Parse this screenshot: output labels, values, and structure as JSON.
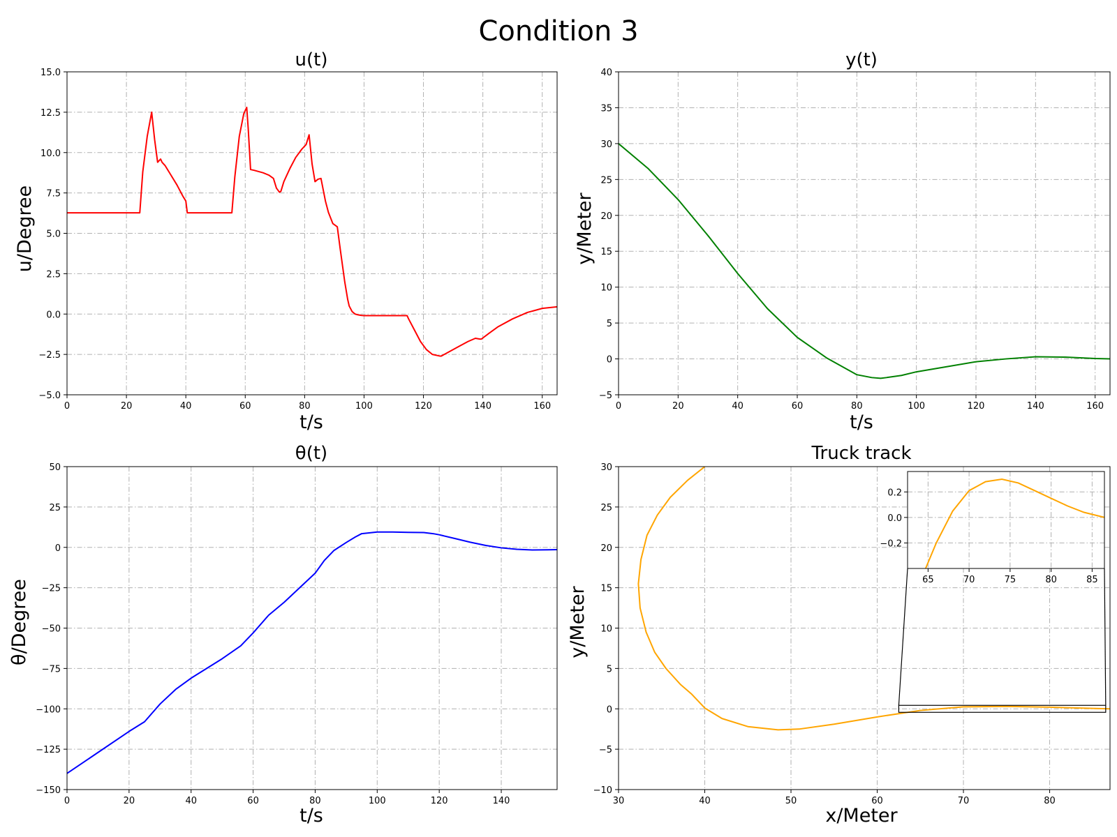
{
  "figure": {
    "suptitle": "Condition 3"
  },
  "chart_data": [
    {
      "id": "u",
      "type": "line",
      "title": "u(t)",
      "xlabel": "t/s",
      "ylabel": "u/Degree",
      "xlim": [
        0,
        165
      ],
      "ylim": [
        -5,
        15
      ],
      "xticks": [
        0,
        20,
        40,
        60,
        80,
        100,
        120,
        140,
        160
      ],
      "yticks": [
        -5,
        -2.5,
        0,
        2.5,
        5,
        7.5,
        10,
        12.5,
        15
      ],
      "ytick_labels": [
        "−5.0",
        "−2.5",
        "0.0",
        "2.5",
        "5.0",
        "7.5",
        "10.0",
        "12.5",
        "15.0"
      ],
      "grid": true,
      "series": [
        {
          "color": "#ff0000",
          "x": [
            0,
            24.5,
            25.5,
            27,
            28.5,
            29.5,
            30.5,
            31.5,
            32,
            33,
            35,
            37,
            39,
            40,
            40.5,
            44,
            50,
            55.5,
            56.5,
            58,
            59.5,
            60.5,
            61,
            61.8,
            63,
            66,
            68,
            69.5,
            70.5,
            71.5,
            72,
            73,
            75,
            77,
            79,
            80.5,
            81.5,
            82.5,
            83.5,
            84.5,
            85.5,
            87,
            88,
            89.5,
            91,
            92,
            93.5,
            94.5,
            95,
            96,
            97,
            98,
            99,
            100,
            101,
            103,
            106,
            110,
            114.5,
            115,
            117,
            119,
            121,
            123,
            125.5,
            126,
            129,
            132,
            135,
            137.5,
            139,
            139.5,
            142,
            145,
            150,
            155,
            160,
            165
          ],
          "y": [
            6.27,
            6.27,
            8.8,
            11,
            12.5,
            10.8,
            9.4,
            9.6,
            9.4,
            9.2,
            8.6,
            8.0,
            7.3,
            7.0,
            6.27,
            6.27,
            6.27,
            6.27,
            8.5,
            11.0,
            12.4,
            12.8,
            11.5,
            8.95,
            8.9,
            8.75,
            8.6,
            8.4,
            7.8,
            7.55,
            7.6,
            8.2,
            9.0,
            9.7,
            10.2,
            10.5,
            11.1,
            9.3,
            8.2,
            8.35,
            8.4,
            7.0,
            6.3,
            5.6,
            5.4,
            4.0,
            2.0,
            0.9,
            0.5,
            0.15,
            0.0,
            -0.05,
            -0.08,
            -0.1,
            -0.1,
            -0.1,
            -0.1,
            -0.1,
            -0.1,
            -0.3,
            -1.0,
            -1.7,
            -2.2,
            -2.5,
            -2.6,
            -2.6,
            -2.3,
            -2.0,
            -1.7,
            -1.5,
            -1.55,
            -1.55,
            -1.2,
            -0.8,
            -0.3,
            0.1,
            0.35,
            0.45
          ]
        }
      ]
    },
    {
      "id": "y",
      "type": "line",
      "title": "y(t)",
      "xlabel": "t/s",
      "ylabel": "y/Meter",
      "xlim": [
        0,
        165
      ],
      "ylim": [
        -5,
        40
      ],
      "xticks": [
        0,
        20,
        40,
        60,
        80,
        100,
        120,
        140,
        160
      ],
      "yticks": [
        -5,
        0,
        5,
        10,
        15,
        20,
        25,
        30,
        35,
        40
      ],
      "grid": true,
      "series": [
        {
          "color": "#008000",
          "x": [
            0,
            10,
            20,
            30,
            40,
            50,
            60,
            70,
            80,
            85,
            88,
            90,
            95,
            100,
            110,
            120,
            130,
            140,
            150,
            160,
            165
          ],
          "y": [
            30,
            26.5,
            22.2,
            17.2,
            11.9,
            7.0,
            3.0,
            0.1,
            -2.2,
            -2.6,
            -2.7,
            -2.6,
            -2.3,
            -1.8,
            -1.1,
            -0.4,
            0.0,
            0.3,
            0.25,
            0.05,
            0.0
          ]
        }
      ]
    },
    {
      "id": "theta",
      "type": "line",
      "title": "θ(t)",
      "xlabel": "t/s",
      "ylabel": "θ/Degree",
      "xlim": [
        0,
        158
      ],
      "ylim": [
        -150,
        50
      ],
      "xticks": [
        0,
        20,
        40,
        60,
        80,
        100,
        120,
        140
      ],
      "yticks": [
        -150,
        -125,
        -100,
        -75,
        -50,
        -25,
        0,
        25,
        50
      ],
      "ytick_labels": [
        "−150",
        "−125",
        "−100",
        "−75",
        "−50",
        "−25",
        "0",
        "25",
        "50"
      ],
      "grid": true,
      "series": [
        {
          "color": "#0000ff",
          "x": [
            0,
            10,
            20,
            25,
            30,
            35,
            40,
            50,
            56,
            60,
            65,
            70,
            75,
            80,
            83,
            86,
            90,
            93,
            95,
            100,
            105,
            110,
            115,
            118,
            120,
            125,
            130,
            135,
            140,
            145,
            150,
            155,
            158
          ],
          "y": [
            -140,
            -127,
            -114,
            -108,
            -97,
            -88,
            -81,
            -69,
            -61,
            -53,
            -42,
            -34,
            -25,
            -16,
            -8,
            -2,
            3,
            6.5,
            8.5,
            9.5,
            9.5,
            9.3,
            9.2,
            8.5,
            7.8,
            5.5,
            3.2,
            1.2,
            -0.3,
            -1.2,
            -1.6,
            -1.5,
            -1.4
          ]
        }
      ]
    },
    {
      "id": "track",
      "type": "line",
      "title": "Truck track",
      "xlabel": "x/Meter",
      "ylabel": "y/Meter",
      "xlim": [
        30,
        87
      ],
      "ylim": [
        -10,
        30
      ],
      "xticks": [
        30,
        40,
        50,
        60,
        70,
        80
      ],
      "yticks": [
        -10,
        -5,
        0,
        5,
        10,
        15,
        20,
        25,
        30
      ],
      "ytick_labels": [
        "−10",
        "−5",
        "0",
        "5",
        "10",
        "15",
        "20",
        "25",
        "30"
      ],
      "grid": true,
      "series": [
        {
          "color": "#ffa500",
          "x": [
            40,
            38,
            36,
            34.5,
            33.3,
            32.6,
            32.3,
            32.5,
            33.2,
            34.2,
            35.5,
            37.2,
            38.5,
            40,
            42,
            45,
            48.5,
            51,
            55,
            60,
            65,
            70,
            75,
            80,
            85,
            87
          ],
          "y": [
            30,
            28.3,
            26.2,
            24,
            21.5,
            18.5,
            15.5,
            12.5,
            9.5,
            7,
            5,
            3,
            1.8,
            0.1,
            -1.2,
            -2.2,
            -2.6,
            -2.5,
            -1.9,
            -1.0,
            -0.2,
            0.25,
            0.3,
            0.2,
            0.05,
            0.0
          ]
        }
      ],
      "inset": {
        "xlim": [
          62.5,
          86.5
        ],
        "ylim": [
          -0.4,
          0.36
        ],
        "xticks": [
          65,
          70,
          75,
          80,
          85
        ],
        "yticks": [
          -0.2,
          0,
          0.2
        ],
        "ytick_labels": [
          "−0.2",
          "0.0",
          "0.2"
        ],
        "series_x": [
          64.7,
          66,
          68,
          70,
          72,
          74,
          76,
          78,
          80,
          82,
          84,
          86.5
        ],
        "series_y": [
          -0.4,
          -0.2,
          0.05,
          0.21,
          0.28,
          0.3,
          0.27,
          0.21,
          0.15,
          0.09,
          0.04,
          0.0
        ],
        "zoom_region": {
          "x": [
            62.5,
            86.5
          ],
          "y": [
            -0.4,
            0.36
          ]
        }
      }
    }
  ]
}
